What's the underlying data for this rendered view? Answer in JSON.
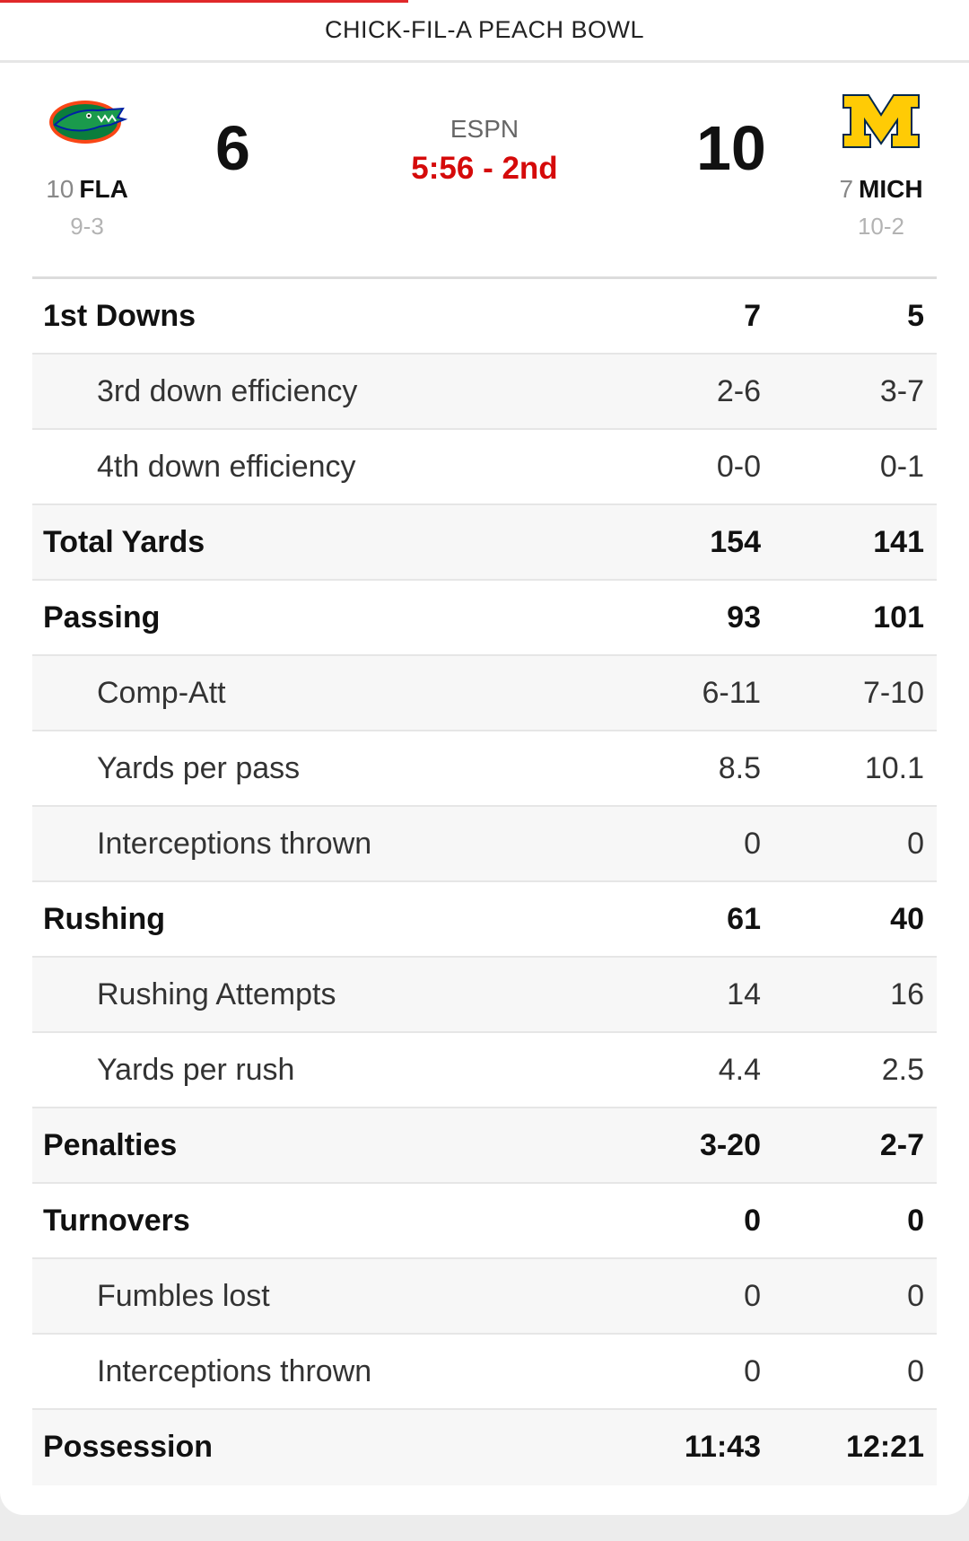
{
  "header": {
    "game_title": "CHICK-FIL-A PEACH BOWL"
  },
  "scoreboard": {
    "home": {
      "rank": "10",
      "abbr": "FLA",
      "record": "9-3",
      "score": "6",
      "logo": "florida-gator-logo"
    },
    "away": {
      "rank": "7",
      "abbr": "MICH",
      "record": "10-2",
      "score": "10",
      "logo": "michigan-block-m-logo"
    },
    "network": "ESPN",
    "clock": "5:56 - 2nd"
  },
  "stats": {
    "rows": [
      {
        "label": "1st Downs",
        "home": "7",
        "away": "5",
        "type": "main"
      },
      {
        "label": "3rd down efficiency",
        "home": "2-6",
        "away": "3-7",
        "type": "sub"
      },
      {
        "label": "4th down efficiency",
        "home": "0-0",
        "away": "0-1",
        "type": "sub"
      },
      {
        "label": "Total Yards",
        "home": "154",
        "away": "141",
        "type": "main"
      },
      {
        "label": "Passing",
        "home": "93",
        "away": "101",
        "type": "main"
      },
      {
        "label": "Comp-Att",
        "home": "6-11",
        "away": "7-10",
        "type": "sub"
      },
      {
        "label": "Yards per pass",
        "home": "8.5",
        "away": "10.1",
        "type": "sub"
      },
      {
        "label": "Interceptions thrown",
        "home": "0",
        "away": "0",
        "type": "sub"
      },
      {
        "label": "Rushing",
        "home": "61",
        "away": "40",
        "type": "main"
      },
      {
        "label": "Rushing Attempts",
        "home": "14",
        "away": "16",
        "type": "sub"
      },
      {
        "label": "Yards per rush",
        "home": "4.4",
        "away": "2.5",
        "type": "sub"
      },
      {
        "label": "Penalties",
        "home": "3-20",
        "away": "2-7",
        "type": "main"
      },
      {
        "label": "Turnovers",
        "home": "0",
        "away": "0",
        "type": "main"
      },
      {
        "label": "Fumbles lost",
        "home": "0",
        "away": "0",
        "type": "sub"
      },
      {
        "label": "Interceptions thrown",
        "home": "0",
        "away": "0",
        "type": "sub"
      },
      {
        "label": "Possession",
        "home": "11:43",
        "away": "12:21",
        "type": "main"
      }
    ]
  },
  "colors": {
    "accent_red": "#d50a0a",
    "michigan_maize": "#ffcb05",
    "florida_orange": "#fa4616",
    "florida_blue": "#0021a5"
  }
}
